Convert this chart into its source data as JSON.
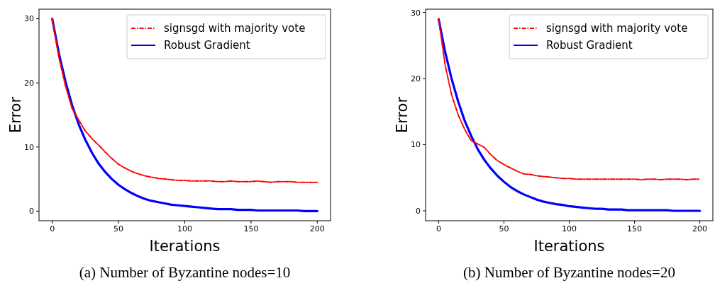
{
  "chart_data": [
    {
      "type": "line",
      "xlabel": "Iterations",
      "ylabel": "Error",
      "annotations": [
        "(a)  Number of Byzantine nodes=10"
      ],
      "legend": "top right",
      "grid": false,
      "xlim": [
        -10,
        210
      ],
      "ylim": [
        -1.5,
        31.5
      ],
      "xticks": [
        0,
        50,
        100,
        150,
        200
      ],
      "yticks": [
        0,
        10,
        20,
        30
      ],
      "x": [
        0,
        5,
        10,
        15,
        20,
        25,
        30,
        35,
        40,
        45,
        50,
        55,
        60,
        65,
        70,
        75,
        80,
        85,
        90,
        95,
        100,
        105,
        110,
        115,
        120,
        125,
        130,
        135,
        140,
        145,
        150,
        155,
        160,
        165,
        170,
        175,
        180,
        185,
        190,
        195,
        200
      ],
      "series": [
        {
          "name": "signsgd with majority vote",
          "color": "#ff0000",
          "line_style": "dashdot",
          "values": [
            30,
            24,
            19.5,
            16,
            14.2,
            12.5,
            11.3,
            10.3,
            9.2,
            8.2,
            7.3,
            6.7,
            6.2,
            5.8,
            5.5,
            5.3,
            5.1,
            5.0,
            4.9,
            4.8,
            4.8,
            4.7,
            4.7,
            4.7,
            4.7,
            4.6,
            4.6,
            4.7,
            4.6,
            4.6,
            4.6,
            4.7,
            4.6,
            4.5,
            4.6,
            4.6,
            4.6,
            4.5,
            4.5,
            4.5,
            4.5
          ]
        },
        {
          "name": "Robust Gradient",
          "color": "#0000ff",
          "line_style": "solid",
          "values": [
            30,
            24.6,
            20.2,
            16.5,
            13.5,
            11.1,
            9.1,
            7.4,
            6.1,
            5.0,
            4.1,
            3.4,
            2.8,
            2.3,
            1.9,
            1.6,
            1.4,
            1.2,
            1.0,
            0.9,
            0.8,
            0.7,
            0.6,
            0.5,
            0.4,
            0.3,
            0.3,
            0.3,
            0.2,
            0.2,
            0.2,
            0.1,
            0.1,
            0.1,
            0.1,
            0.1,
            0.1,
            0.1,
            0.0,
            0.0,
            0.0
          ]
        }
      ]
    },
    {
      "type": "line",
      "xlabel": "Iterations",
      "ylabel": "Error",
      "annotations": [
        "(b)  Number of Byzantine nodes=20"
      ],
      "legend": "top right",
      "grid": false,
      "xlim": [
        -10,
        210
      ],
      "ylim": [
        -1.5,
        30.5
      ],
      "xticks": [
        0,
        50,
        100,
        150,
        200
      ],
      "yticks": [
        0,
        10,
        20,
        30
      ],
      "x": [
        0,
        5,
        10,
        15,
        20,
        25,
        30,
        35,
        40,
        45,
        50,
        55,
        60,
        65,
        70,
        75,
        80,
        85,
        90,
        95,
        100,
        105,
        110,
        115,
        120,
        125,
        130,
        135,
        140,
        145,
        150,
        155,
        160,
        165,
        170,
        175,
        180,
        185,
        190,
        195,
        200
      ],
      "series": [
        {
          "name": "signsgd with majority vote",
          "color": "#ff0000",
          "line_style": "dashdot",
          "values": [
            29,
            22,
            17.5,
            14.5,
            12.3,
            10.6,
            10.1,
            9.6,
            8.5,
            7.6,
            7.0,
            6.5,
            6.0,
            5.6,
            5.5,
            5.3,
            5.2,
            5.1,
            5.0,
            4.9,
            4.9,
            4.8,
            4.8,
            4.8,
            4.8,
            4.8,
            4.8,
            4.8,
            4.8,
            4.8,
            4.8,
            4.7,
            4.8,
            4.8,
            4.7,
            4.8,
            4.8,
            4.8,
            4.7,
            4.8,
            4.8
          ]
        },
        {
          "name": "Robust Gradient",
          "color": "#0000ff",
          "line_style": "solid",
          "values": [
            29,
            24.0,
            19.9,
            16.5,
            13.6,
            11.3,
            9.3,
            7.7,
            6.4,
            5.3,
            4.4,
            3.6,
            3.0,
            2.5,
            2.1,
            1.7,
            1.4,
            1.2,
            1.0,
            0.9,
            0.7,
            0.6,
            0.5,
            0.4,
            0.3,
            0.3,
            0.2,
            0.2,
            0.2,
            0.1,
            0.1,
            0.1,
            0.1,
            0.1,
            0.1,
            0.1,
            0.0,
            0.0,
            0.0,
            0.0,
            0.0
          ]
        }
      ]
    }
  ]
}
